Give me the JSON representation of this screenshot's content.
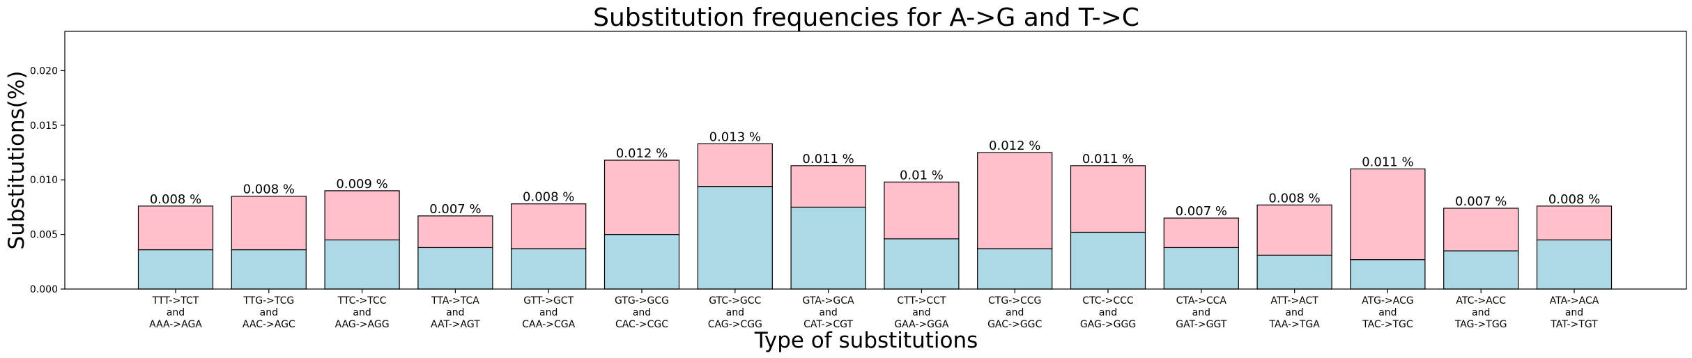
{
  "chart_data": {
    "type": "bar",
    "stacked": true,
    "title": "Substitution frequencies for A->G and T->C",
    "xlabel": "Type of substitutions",
    "ylabel": "Substitutions(%)",
    "ylim": [
      0,
      0.0236
    ],
    "yticks": [
      "0.000",
      "0.005",
      "0.010",
      "0.015",
      "0.020"
    ],
    "ytick_values": [
      0,
      0.005,
      0.01,
      0.015,
      0.02
    ],
    "grid": false,
    "colors": {
      "bottom": "#add8e6",
      "top": "#ffc0cb",
      "edge": "#000000"
    },
    "categories": [
      [
        "TTT->TCT",
        "and",
        "AAA->AGA"
      ],
      [
        "TTG->TCG",
        "and",
        "AAC->AGC"
      ],
      [
        "TTC->TCC",
        "and",
        "AAG->AGG"
      ],
      [
        "TTA->TCA",
        "and",
        "AAT->AGT"
      ],
      [
        "GTT->GCT",
        "and",
        "CAA->CGA"
      ],
      [
        "GTG->GCG",
        "and",
        "CAC->CGC"
      ],
      [
        "GTC->GCC",
        "and",
        "CAG->CGG"
      ],
      [
        "GTA->GCA",
        "and",
        "CAT->CGT"
      ],
      [
        "CTT->CCT",
        "and",
        "GAA->GGA"
      ],
      [
        "CTG->CCG",
        "and",
        "GAC->GGC"
      ],
      [
        "CTC->CCC",
        "and",
        "GAG->GGG"
      ],
      [
        "CTA->CCA",
        "and",
        "GAT->GGT"
      ],
      [
        "ATT->ACT",
        "and",
        "TAA->TGA"
      ],
      [
        "ATG->ACG",
        "and",
        "TAC->TGC"
      ],
      [
        "ATC->ACC",
        "and",
        "TAG->TGG"
      ],
      [
        "ATA->ACA",
        "and",
        "TAT->TGT"
      ]
    ],
    "series": [
      {
        "values": [
          0.0036,
          0.0036,
          0.0045,
          0.0038,
          0.0037,
          0.005,
          0.0094,
          0.0075,
          0.0046,
          0.0037,
          0.0052,
          0.0038,
          0.0031,
          0.0027,
          0.0035,
          0.0045
        ]
      },
      {
        "values": [
          0.004,
          0.0049,
          0.0045,
          0.0029,
          0.0041,
          0.0068,
          0.0039,
          0.0038,
          0.0052,
          0.0088,
          0.0061,
          0.0027,
          0.0046,
          0.0083,
          0.0039,
          0.0031
        ]
      }
    ],
    "totals": [
      0.0076,
      0.0085,
      0.009,
      0.0067,
      0.0078,
      0.0118,
      0.0133,
      0.0113,
      0.0098,
      0.0125,
      0.0113,
      0.0065,
      0.0077,
      0.011,
      0.0074,
      0.0076
    ],
    "data_labels": [
      "0.008 %",
      "0.008 %",
      "0.009 %",
      "0.007 %",
      "0.008 %",
      "0.012 %",
      "0.013 %",
      "0.011 %",
      "0.01 %",
      "0.012 %",
      "0.011 %",
      "0.007 %",
      "0.008 %",
      "0.011 %",
      "0.007 %",
      "0.008 %"
    ]
  }
}
